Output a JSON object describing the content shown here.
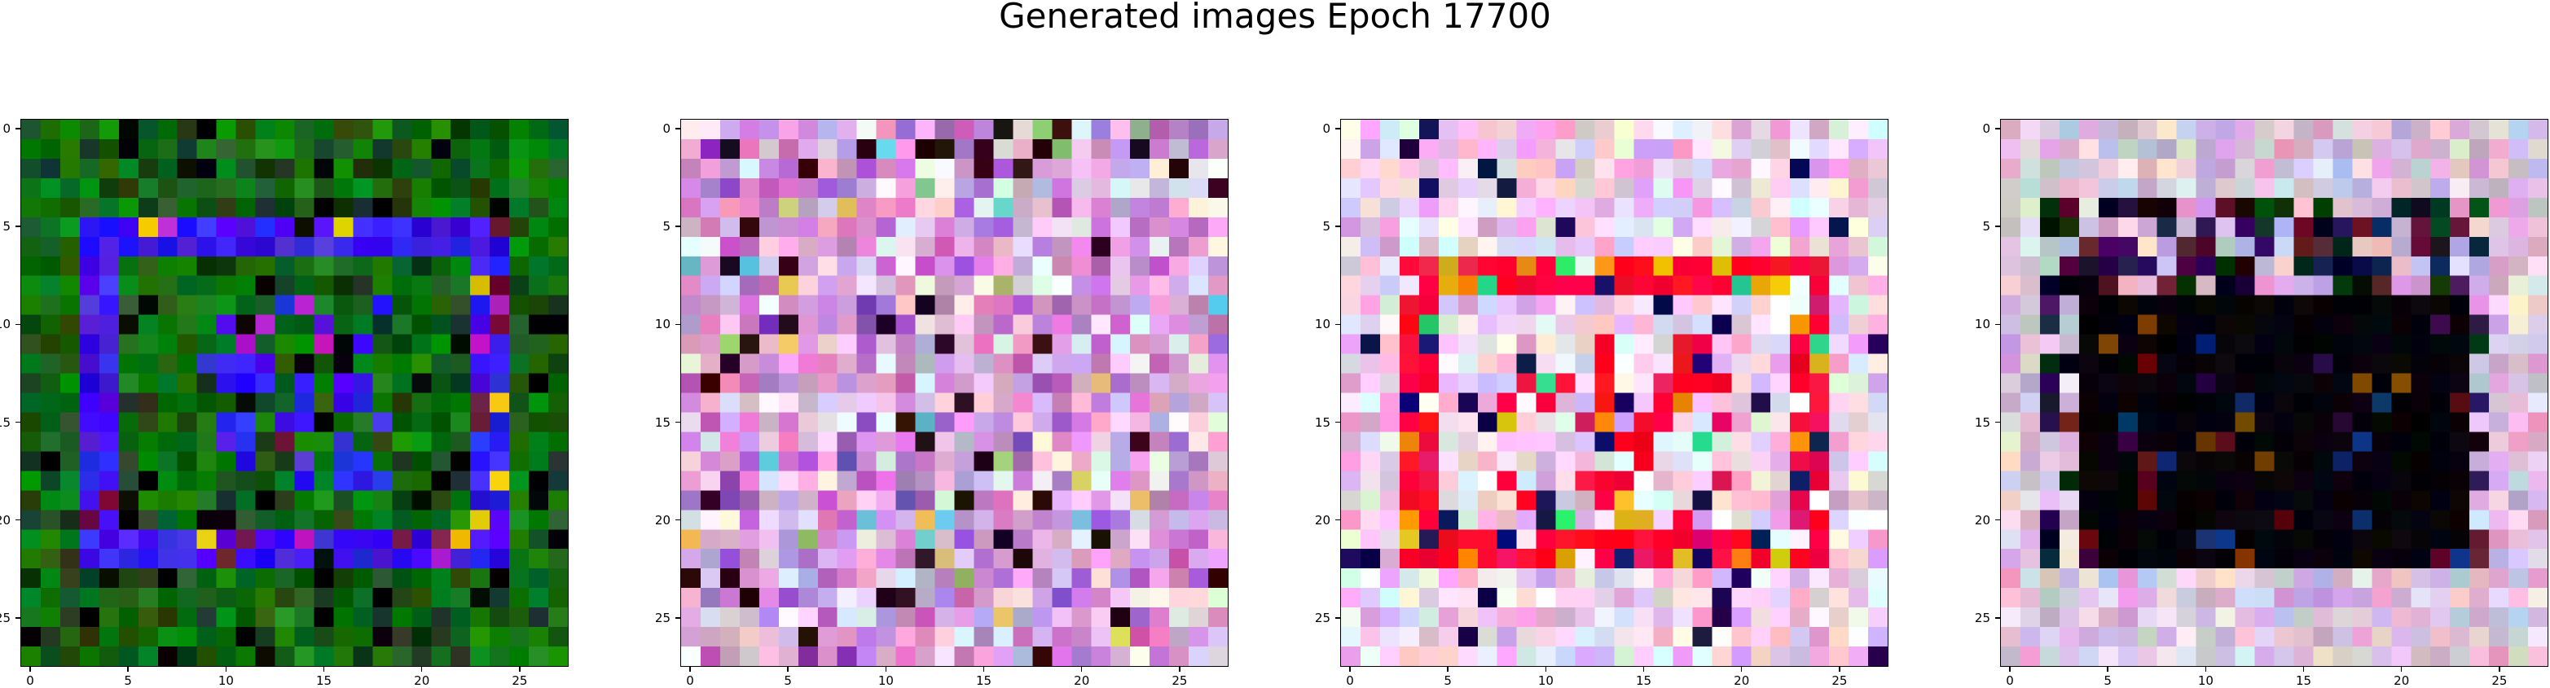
{
  "figure": {
    "title": "Generated images Epoch 17700"
  },
  "chart_data": [
    {
      "type": "heatmap",
      "name": "image-1",
      "description_palette": [
        "#0a6b10",
        "#0c7e0c",
        "#1b4a1b",
        "#3a1df0",
        "#2a18ff",
        "#000000"
      ],
      "grid": [
        28,
        28
      ],
      "xticks": [
        "0",
        "5",
        "10",
        "15",
        "20",
        "25"
      ],
      "yticks": [
        "0",
        "5",
        "10",
        "15",
        "20",
        "25"
      ],
      "xlim": [
        -0.5,
        27.5
      ],
      "ylim": [
        27.5,
        -0.5
      ],
      "pattern": "green-field-blue-ring"
    },
    {
      "type": "heatmap",
      "name": "image-2",
      "description_palette": [
        "#e8b7e2",
        "#d98fd1",
        "#c7a0d8",
        "#f0e6f2",
        "#b36ac4",
        "#3a0a14"
      ],
      "grid": [
        28,
        28
      ],
      "xticks": [
        "0",
        "5",
        "10",
        "15",
        "20",
        "25"
      ],
      "yticks": [
        "0",
        "5",
        "10",
        "15",
        "20",
        "25"
      ],
      "xlim": [
        -0.5,
        27.5
      ],
      "ylim": [
        27.5,
        -0.5
      ],
      "pattern": "pink-noise"
    },
    {
      "type": "heatmap",
      "name": "image-3",
      "description_palette": [
        "#e8b7e2",
        "#f0e6f2",
        "#ff0033",
        "#e0156b",
        "#20e060",
        "#0a0a60"
      ],
      "grid": [
        28,
        28
      ],
      "xticks": [
        "0",
        "5",
        "10",
        "15",
        "20",
        "25"
      ],
      "yticks": [
        "0",
        "5",
        "10",
        "15",
        "20",
        "25"
      ],
      "xlim": [
        -0.5,
        27.5
      ],
      "ylim": [
        27.5,
        -0.5
      ],
      "pattern": "pink-field-red-ring"
    },
    {
      "type": "heatmap",
      "name": "image-4",
      "description_palette": [
        "#e8d7e2",
        "#d8b0d4",
        "#c7c0d8",
        "#000000",
        "#1a0a1a",
        "#3a0a10"
      ],
      "grid": [
        28,
        28
      ],
      "xticks": [
        "0",
        "5",
        "10",
        "15",
        "20",
        "25"
      ],
      "yticks": [
        "0",
        "5",
        "10",
        "15",
        "20",
        "25"
      ],
      "xlim": [
        -0.5,
        27.5
      ],
      "ylim": [
        27.5,
        -0.5
      ],
      "pattern": "pale-border-dark-block"
    }
  ]
}
